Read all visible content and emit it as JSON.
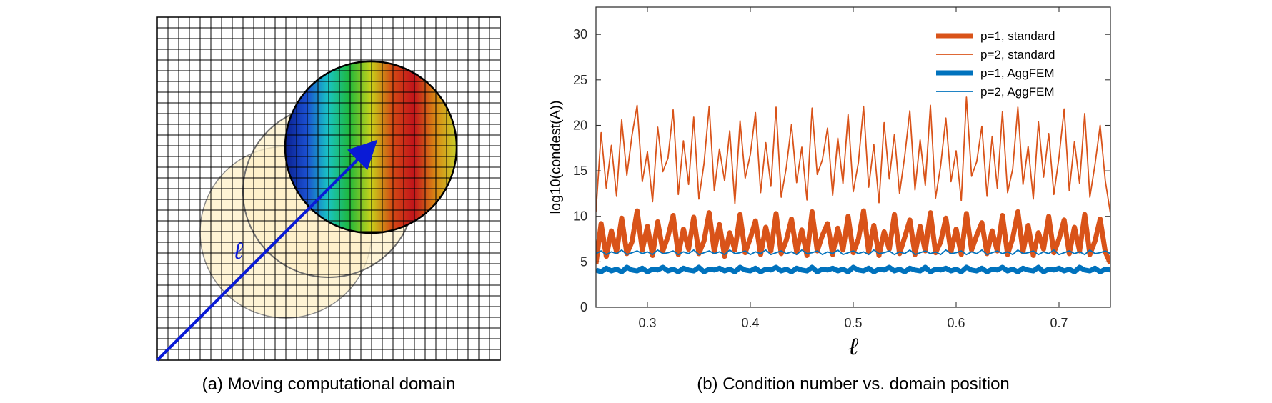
{
  "panel_a": {
    "caption": "(a) Moving computational domain",
    "arrow_label": "ℓ",
    "grid_cells": 32,
    "colors": {
      "grid": "#000000",
      "arrow": "#0a1bd6",
      "shadow_fill": "#fdf0c8"
    },
    "colormap": [
      "#0a1f8f",
      "#1a4fd0",
      "#19c4c4",
      "#1fb83a",
      "#c8d21a",
      "#d44a14",
      "#c2141b",
      "#d98814",
      "#c9d02a"
    ]
  },
  "panel_b": {
    "caption": "(b) Condition number vs. domain position"
  },
  "chart_data": {
    "type": "line",
    "title": "",
    "xlabel": "ℓ",
    "ylabel": "log10(condest(A))",
    "xlim": [
      0.25,
      0.75
    ],
    "ylim": [
      0,
      33
    ],
    "xticks": [
      0.3,
      0.4,
      0.5,
      0.6,
      0.7
    ],
    "yticks": [
      0,
      5,
      10,
      15,
      20,
      25,
      30
    ],
    "legend_position": "top-right",
    "grid": false,
    "series": [
      {
        "name": "p=1, standard",
        "color": "#d95319",
        "width": "thick",
        "x": [
          0.25,
          0.255,
          0.26,
          0.265,
          0.27,
          0.275,
          0.28,
          0.285,
          0.29,
          0.295,
          0.3,
          0.305,
          0.31,
          0.315,
          0.32,
          0.325,
          0.33,
          0.335,
          0.34,
          0.345,
          0.35,
          0.355,
          0.36,
          0.365,
          0.37,
          0.375,
          0.38,
          0.385,
          0.39,
          0.395,
          0.4,
          0.405,
          0.41,
          0.415,
          0.42,
          0.425,
          0.43,
          0.435,
          0.44,
          0.445,
          0.45,
          0.455,
          0.46,
          0.465,
          0.47,
          0.475,
          0.48,
          0.485,
          0.49,
          0.495,
          0.5,
          0.505,
          0.51,
          0.515,
          0.52,
          0.525,
          0.53,
          0.535,
          0.54,
          0.545,
          0.55,
          0.555,
          0.56,
          0.565,
          0.57,
          0.575,
          0.58,
          0.585,
          0.59,
          0.595,
          0.6,
          0.605,
          0.61,
          0.615,
          0.62,
          0.625,
          0.63,
          0.635,
          0.64,
          0.645,
          0.65,
          0.655,
          0.66,
          0.665,
          0.67,
          0.675,
          0.68,
          0.685,
          0.69,
          0.695,
          0.7,
          0.705,
          0.71,
          0.715,
          0.72,
          0.725,
          0.73,
          0.735,
          0.74,
          0.745,
          0.75
        ],
        "y": [
          4.8,
          9.2,
          5.6,
          8.4,
          6.1,
          9.8,
          5.9,
          7.2,
          10.6,
          6.3,
          8.9,
          5.7,
          9.4,
          6.2,
          7.8,
          10.1,
          5.8,
          8.6,
          6.4,
          9.9,
          5.9,
          7.3,
          10.4,
          6.1,
          9.1,
          5.6,
          8.2,
          6.3,
          10.2,
          6.0,
          7.6,
          9.5,
          5.8,
          8.8,
          6.2,
          10.3,
          5.9,
          7.4,
          9.7,
          6.1,
          8.5,
          5.7,
          10.5,
          6.2,
          7.9,
          9.2,
          5.8,
          8.7,
          6.3,
          10.0,
          6.0,
          7.5,
          10.6,
          6.1,
          9.0,
          5.7,
          8.3,
          6.4,
          10.2,
          5.9,
          7.7,
          9.6,
          5.8,
          8.9,
          6.2,
          10.4,
          6.0,
          7.2,
          9.8,
          6.1,
          8.6,
          5.8,
          10.3,
          6.3,
          7.9,
          9.3,
          5.9,
          8.4,
          6.2,
          10.1,
          5.8,
          7.6,
          10.5,
          6.1,
          9.0,
          5.7,
          8.2,
          6.4,
          10.0,
          6.0,
          7.5,
          9.6,
          5.9,
          8.8,
          6.2,
          10.2,
          5.8,
          7.3,
          9.7,
          6.1,
          4.8
        ]
      },
      {
        "name": "p=2, standard",
        "color": "#d95319",
        "width": "thin",
        "x": [
          0.25,
          0.255,
          0.26,
          0.265,
          0.27,
          0.275,
          0.28,
          0.285,
          0.29,
          0.295,
          0.3,
          0.305,
          0.31,
          0.315,
          0.32,
          0.325,
          0.33,
          0.335,
          0.34,
          0.345,
          0.35,
          0.355,
          0.36,
          0.365,
          0.37,
          0.375,
          0.38,
          0.385,
          0.39,
          0.395,
          0.4,
          0.405,
          0.41,
          0.415,
          0.42,
          0.425,
          0.43,
          0.435,
          0.44,
          0.445,
          0.45,
          0.455,
          0.46,
          0.465,
          0.47,
          0.475,
          0.48,
          0.485,
          0.49,
          0.495,
          0.5,
          0.505,
          0.51,
          0.515,
          0.52,
          0.525,
          0.53,
          0.535,
          0.54,
          0.545,
          0.55,
          0.555,
          0.56,
          0.565,
          0.57,
          0.575,
          0.58,
          0.585,
          0.59,
          0.595,
          0.6,
          0.605,
          0.61,
          0.615,
          0.62,
          0.625,
          0.63,
          0.635,
          0.64,
          0.645,
          0.65,
          0.655,
          0.66,
          0.665,
          0.67,
          0.675,
          0.68,
          0.685,
          0.69,
          0.695,
          0.7,
          0.705,
          0.71,
          0.715,
          0.72,
          0.725,
          0.73,
          0.735,
          0.74,
          0.745,
          0.75
        ],
        "y": [
          10.5,
          19.2,
          13.1,
          17.8,
          12.2,
          20.6,
          14.5,
          18.9,
          22.2,
          13.8,
          17.1,
          11.6,
          19.8,
          14.9,
          16.4,
          21.7,
          12.4,
          18.3,
          13.5,
          20.9,
          11.9,
          15.8,
          22.1,
          12.8,
          17.4,
          13.9,
          19.4,
          11.4,
          20.5,
          14.2,
          16.8,
          21.4,
          12.6,
          18.1,
          13.3,
          22.0,
          12.1,
          15.4,
          20.1,
          13.7,
          17.6,
          11.8,
          21.9,
          14.6,
          16.2,
          19.7,
          12.3,
          18.6,
          13.6,
          21.2,
          12.7,
          15.9,
          22.1,
          13.2,
          17.9,
          11.5,
          20.3,
          14.1,
          19.0,
          12.5,
          16.6,
          21.6,
          12.9,
          18.4,
          13.4,
          22.2,
          12.0,
          15.6,
          20.8,
          13.8,
          17.2,
          11.7,
          23.1,
          14.4,
          16.0,
          19.9,
          12.2,
          18.8,
          13.1,
          21.5,
          12.6,
          15.2,
          22.0,
          13.5,
          17.7,
          11.9,
          20.4,
          14.3,
          19.1,
          12.4,
          16.5,
          21.8,
          12.8,
          18.2,
          13.6,
          21.3,
          12.1,
          15.7,
          20.0,
          13.9,
          10.3
        ]
      },
      {
        "name": "p=1, AggFEM",
        "color": "#0072bd",
        "width": "thick",
        "x": [
          0.25,
          0.255,
          0.26,
          0.265,
          0.27,
          0.275,
          0.28,
          0.285,
          0.29,
          0.295,
          0.3,
          0.305,
          0.31,
          0.315,
          0.32,
          0.325,
          0.33,
          0.335,
          0.34,
          0.345,
          0.35,
          0.355,
          0.36,
          0.365,
          0.37,
          0.375,
          0.38,
          0.385,
          0.39,
          0.395,
          0.4,
          0.405,
          0.41,
          0.415,
          0.42,
          0.425,
          0.43,
          0.435,
          0.44,
          0.445,
          0.45,
          0.455,
          0.46,
          0.465,
          0.47,
          0.475,
          0.48,
          0.485,
          0.49,
          0.495,
          0.5,
          0.505,
          0.51,
          0.515,
          0.52,
          0.525,
          0.53,
          0.535,
          0.54,
          0.545,
          0.55,
          0.555,
          0.56,
          0.565,
          0.57,
          0.575,
          0.58,
          0.585,
          0.59,
          0.595,
          0.6,
          0.605,
          0.61,
          0.615,
          0.62,
          0.625,
          0.63,
          0.635,
          0.64,
          0.645,
          0.65,
          0.655,
          0.66,
          0.665,
          0.67,
          0.675,
          0.68,
          0.685,
          0.69,
          0.695,
          0.7,
          0.705,
          0.71,
          0.715,
          0.72,
          0.725,
          0.73,
          0.735,
          0.74,
          0.745,
          0.75
        ],
        "y": [
          4.1,
          3.9,
          4.3,
          4.0,
          4.2,
          3.9,
          4.4,
          4.1,
          4.0,
          4.3,
          3.9,
          4.2,
          4.1,
          4.4,
          4.0,
          4.2,
          3.9,
          4.3,
          4.1,
          4.0,
          4.4,
          3.9,
          4.2,
          4.1,
          4.3,
          4.0,
          4.2,
          3.9,
          4.4,
          4.1,
          4.0,
          4.3,
          3.9,
          4.2,
          4.1,
          4.4,
          4.0,
          4.2,
          3.9,
          4.3,
          4.1,
          4.0,
          4.4,
          3.9,
          4.2,
          4.1,
          4.3,
          4.0,
          4.2,
          3.9,
          4.4,
          4.1,
          4.0,
          4.3,
          3.9,
          4.2,
          4.1,
          4.4,
          4.0,
          4.2,
          3.9,
          4.3,
          4.1,
          4.0,
          4.4,
          3.9,
          4.2,
          4.1,
          4.3,
          4.0,
          4.2,
          3.9,
          4.4,
          4.1,
          4.0,
          4.3,
          3.9,
          4.2,
          4.1,
          4.4,
          4.0,
          4.2,
          3.9,
          4.3,
          4.1,
          4.0,
          4.4,
          3.9,
          4.2,
          4.1,
          4.3,
          4.0,
          4.2,
          3.9,
          4.4,
          4.1,
          4.0,
          4.3,
          3.9,
          4.2,
          4.1
        ]
      },
      {
        "name": "p=2, AggFEM",
        "color": "#0072bd",
        "width": "thin",
        "x": [
          0.25,
          0.255,
          0.26,
          0.265,
          0.27,
          0.275,
          0.28,
          0.285,
          0.29,
          0.295,
          0.3,
          0.305,
          0.31,
          0.315,
          0.32,
          0.325,
          0.33,
          0.335,
          0.34,
          0.345,
          0.35,
          0.355,
          0.36,
          0.365,
          0.37,
          0.375,
          0.38,
          0.385,
          0.39,
          0.395,
          0.4,
          0.405,
          0.41,
          0.415,
          0.42,
          0.425,
          0.43,
          0.435,
          0.44,
          0.445,
          0.45,
          0.455,
          0.46,
          0.465,
          0.47,
          0.475,
          0.48,
          0.485,
          0.49,
          0.495,
          0.5,
          0.505,
          0.51,
          0.515,
          0.52,
          0.525,
          0.53,
          0.535,
          0.54,
          0.545,
          0.55,
          0.555,
          0.56,
          0.565,
          0.57,
          0.575,
          0.58,
          0.585,
          0.59,
          0.595,
          0.6,
          0.605,
          0.61,
          0.615,
          0.62,
          0.625,
          0.63,
          0.635,
          0.64,
          0.645,
          0.65,
          0.655,
          0.66,
          0.665,
          0.67,
          0.675,
          0.68,
          0.685,
          0.69,
          0.695,
          0.7,
          0.705,
          0.71,
          0.715,
          0.72,
          0.725,
          0.73,
          0.735,
          0.74,
          0.745,
          0.75
        ],
        "y": [
          5.9,
          6.2,
          5.8,
          6.1,
          5.9,
          6.3,
          5.8,
          6.0,
          6.2,
          5.9,
          6.1,
          5.8,
          6.3,
          5.9,
          6.0,
          6.2,
          5.8,
          6.1,
          5.9,
          6.3,
          5.8,
          6.0,
          6.2,
          5.9,
          6.1,
          5.8,
          6.3,
          5.9,
          6.0,
          6.2,
          5.8,
          6.1,
          5.9,
          6.3,
          5.8,
          6.0,
          6.2,
          5.9,
          6.1,
          5.8,
          6.3,
          5.9,
          6.0,
          6.2,
          5.8,
          6.1,
          5.9,
          6.3,
          5.8,
          6.0,
          6.2,
          5.9,
          6.1,
          5.8,
          6.3,
          5.9,
          6.0,
          6.2,
          5.8,
          6.1,
          5.9,
          6.3,
          5.8,
          6.0,
          6.2,
          5.9,
          6.1,
          5.8,
          6.3,
          5.9,
          6.0,
          6.2,
          5.8,
          6.1,
          5.9,
          6.3,
          5.8,
          6.0,
          6.2,
          5.9,
          6.1,
          5.8,
          6.3,
          5.9,
          6.0,
          6.2,
          5.8,
          6.1,
          5.9,
          6.3,
          5.8,
          6.0,
          6.2,
          5.9,
          6.1,
          5.8,
          6.3,
          5.9,
          6.0,
          6.2,
          5.9
        ]
      }
    ]
  }
}
